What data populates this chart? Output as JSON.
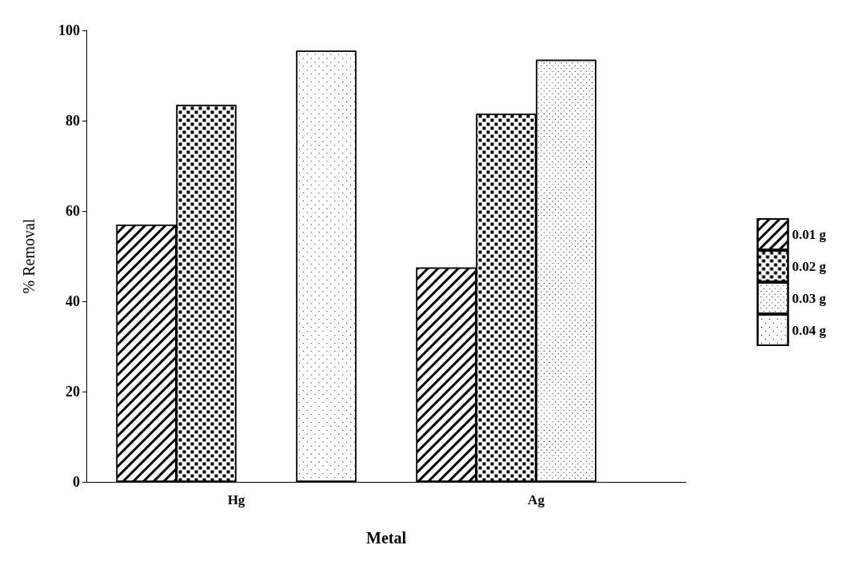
{
  "chart_data": {
    "type": "bar",
    "xlabel": "Metal",
    "ylabel": "% Removal",
    "categories": [
      "Hg",
      "Ag"
    ],
    "series": [
      {
        "name": "0.01 g",
        "color": "#000000",
        "values": [
          57,
          47.5
        ]
      },
      {
        "name": "0.02 g",
        "color": "#000000",
        "values": [
          83.5,
          81.5
        ]
      },
      {
        "name": "0.03 g",
        "color": "#000000",
        "values": [
          null,
          93.5
        ]
      },
      {
        "name": "0.04 g",
        "color": "#000000",
        "values": [
          95.5,
          null
        ]
      }
    ],
    "ylim": [
      0,
      100
    ],
    "yticks": [
      0,
      20,
      40,
      60,
      80,
      100
    ],
    "grid": false,
    "legend": "right"
  }
}
